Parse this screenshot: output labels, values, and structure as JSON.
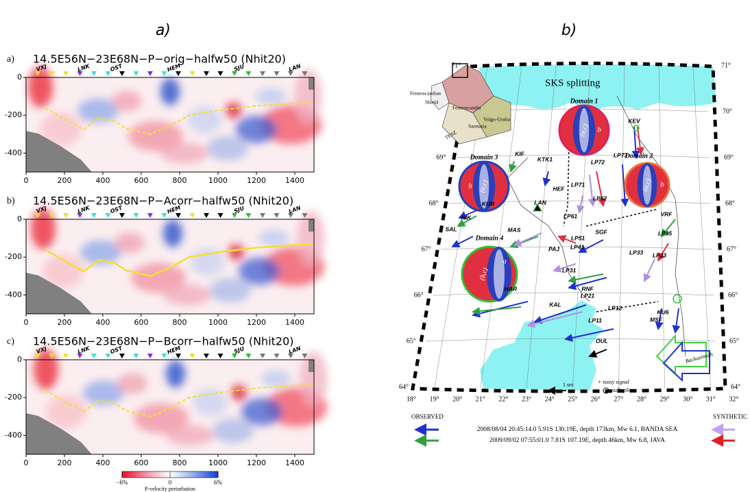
{
  "panel_labels": [
    "a)",
    "b)"
  ],
  "tomography": {
    "sections": [
      {
        "label": "a)",
        "title": "14.5E56N−23E68N−P−orig−halfw50 (Nhit20)"
      },
      {
        "label": "b)",
        "title": "14.5E56N−23E68N−P−Acorr−halfw50 (Nhit20)"
      },
      {
        "label": "c)",
        "title": "14.5E56N−23E68N−P−Bcorr−halfw50 (Nhit20)"
      }
    ],
    "stations": [
      "VXJ",
      "LNK",
      "OST",
      "HEM",
      "SJU",
      "LAN"
    ],
    "xlim": [
      0,
      1500
    ],
    "xticks": [
      0,
      200,
      400,
      600,
      800,
      1000,
      1200,
      1400
    ],
    "ylim": [
      -500,
      0
    ],
    "yticks": [
      0,
      -200,
      -400
    ],
    "colorbar": {
      "lim": [
        -6,
        6
      ],
      "ticks": [
        {
          "value": -6,
          "label": "−6%"
        },
        {
          "value": 0,
          "label": "0"
        },
        {
          "value": 6,
          "label": "6%"
        }
      ],
      "label": "P-velocity perturbation"
    }
  },
  "map": {
    "title": "SKS splitting",
    "inset_labels": [
      "Fennoscandian",
      "Shield",
      "Fennoscandia",
      "Volgo-Uralia",
      "Sarmatia",
      "TESZ"
    ],
    "domains": [
      {
        "name": "Domain 1",
        "labels": [
          "(a,c)",
          "b"
        ]
      },
      {
        "name": "Domain 2",
        "labels": [
          "(a,c)",
          "b"
        ]
      },
      {
        "name": "Domain 3",
        "labels": [
          "(a,c)",
          "b"
        ]
      },
      {
        "name": "Domain 4",
        "labels": [
          "(b,c)",
          "a"
        ]
      }
    ],
    "stations": [
      "KEV",
      "KTK1",
      "LP72",
      "LP73",
      "KIF",
      "LP71",
      "HEF",
      "LAN",
      "LP62",
      "KUR",
      "NIK",
      "SAL",
      "LP61",
      "VRF",
      "MAS",
      "LP51",
      "SGF",
      "LP35",
      "PAJ",
      "LP41",
      "LP33",
      "LP23",
      "LP31",
      "RNF",
      "HAR",
      "KU6",
      "LP21",
      "LP12",
      "KAL",
      "MSF",
      "LP11",
      "OUL"
    ],
    "lat_ticks": [
      {
        "value": 64,
        "label": "64°"
      },
      {
        "value": 65,
        "label": "65°"
      },
      {
        "value": 66,
        "label": "66°"
      },
      {
        "value": 67,
        "label": "67°"
      },
      {
        "value": 68,
        "label": "68°"
      },
      {
        "value": 69,
        "label": "69°"
      },
      {
        "value": 70,
        "label": "70°"
      },
      {
        "value": 71,
        "label": "71°"
      }
    ],
    "lon_ticks": [
      {
        "value": 18,
        "label": "18°"
      },
      {
        "value": 19,
        "label": "19°"
      },
      {
        "value": 20,
        "label": "20°"
      },
      {
        "value": 21,
        "label": "21°"
      },
      {
        "value": 22,
        "label": "22°"
      },
      {
        "value": 23,
        "label": "23°"
      },
      {
        "value": 24,
        "label": "24°"
      },
      {
        "value": 25,
        "label": "25°"
      },
      {
        "value": 26,
        "label": "26°"
      },
      {
        "value": 27,
        "label": "27°"
      },
      {
        "value": 28,
        "label": "28°"
      },
      {
        "value": 29,
        "label": "29°"
      },
      {
        "value": 30,
        "label": "30°"
      },
      {
        "value": 31,
        "label": "31°"
      },
      {
        "value": 32,
        "label": "32°"
      }
    ],
    "scale_label": "1 sec",
    "noisy_label": "+ noisy signal",
    "null_label": "null split",
    "backazimuth_label": "Backazimuth",
    "legend": {
      "observed": "OBSERVED",
      "synthetic": "SYNTHETIC",
      "events": [
        "2008/08/04  20:45:14.0  5.91S 130.19E, depth 173km, Mw 6.1, BANDA SEA",
        "2009/09/02  07:55:01.0  7.81S 107.19E, depth 46km, Mw 6.8, JAVA"
      ]
    }
  }
}
